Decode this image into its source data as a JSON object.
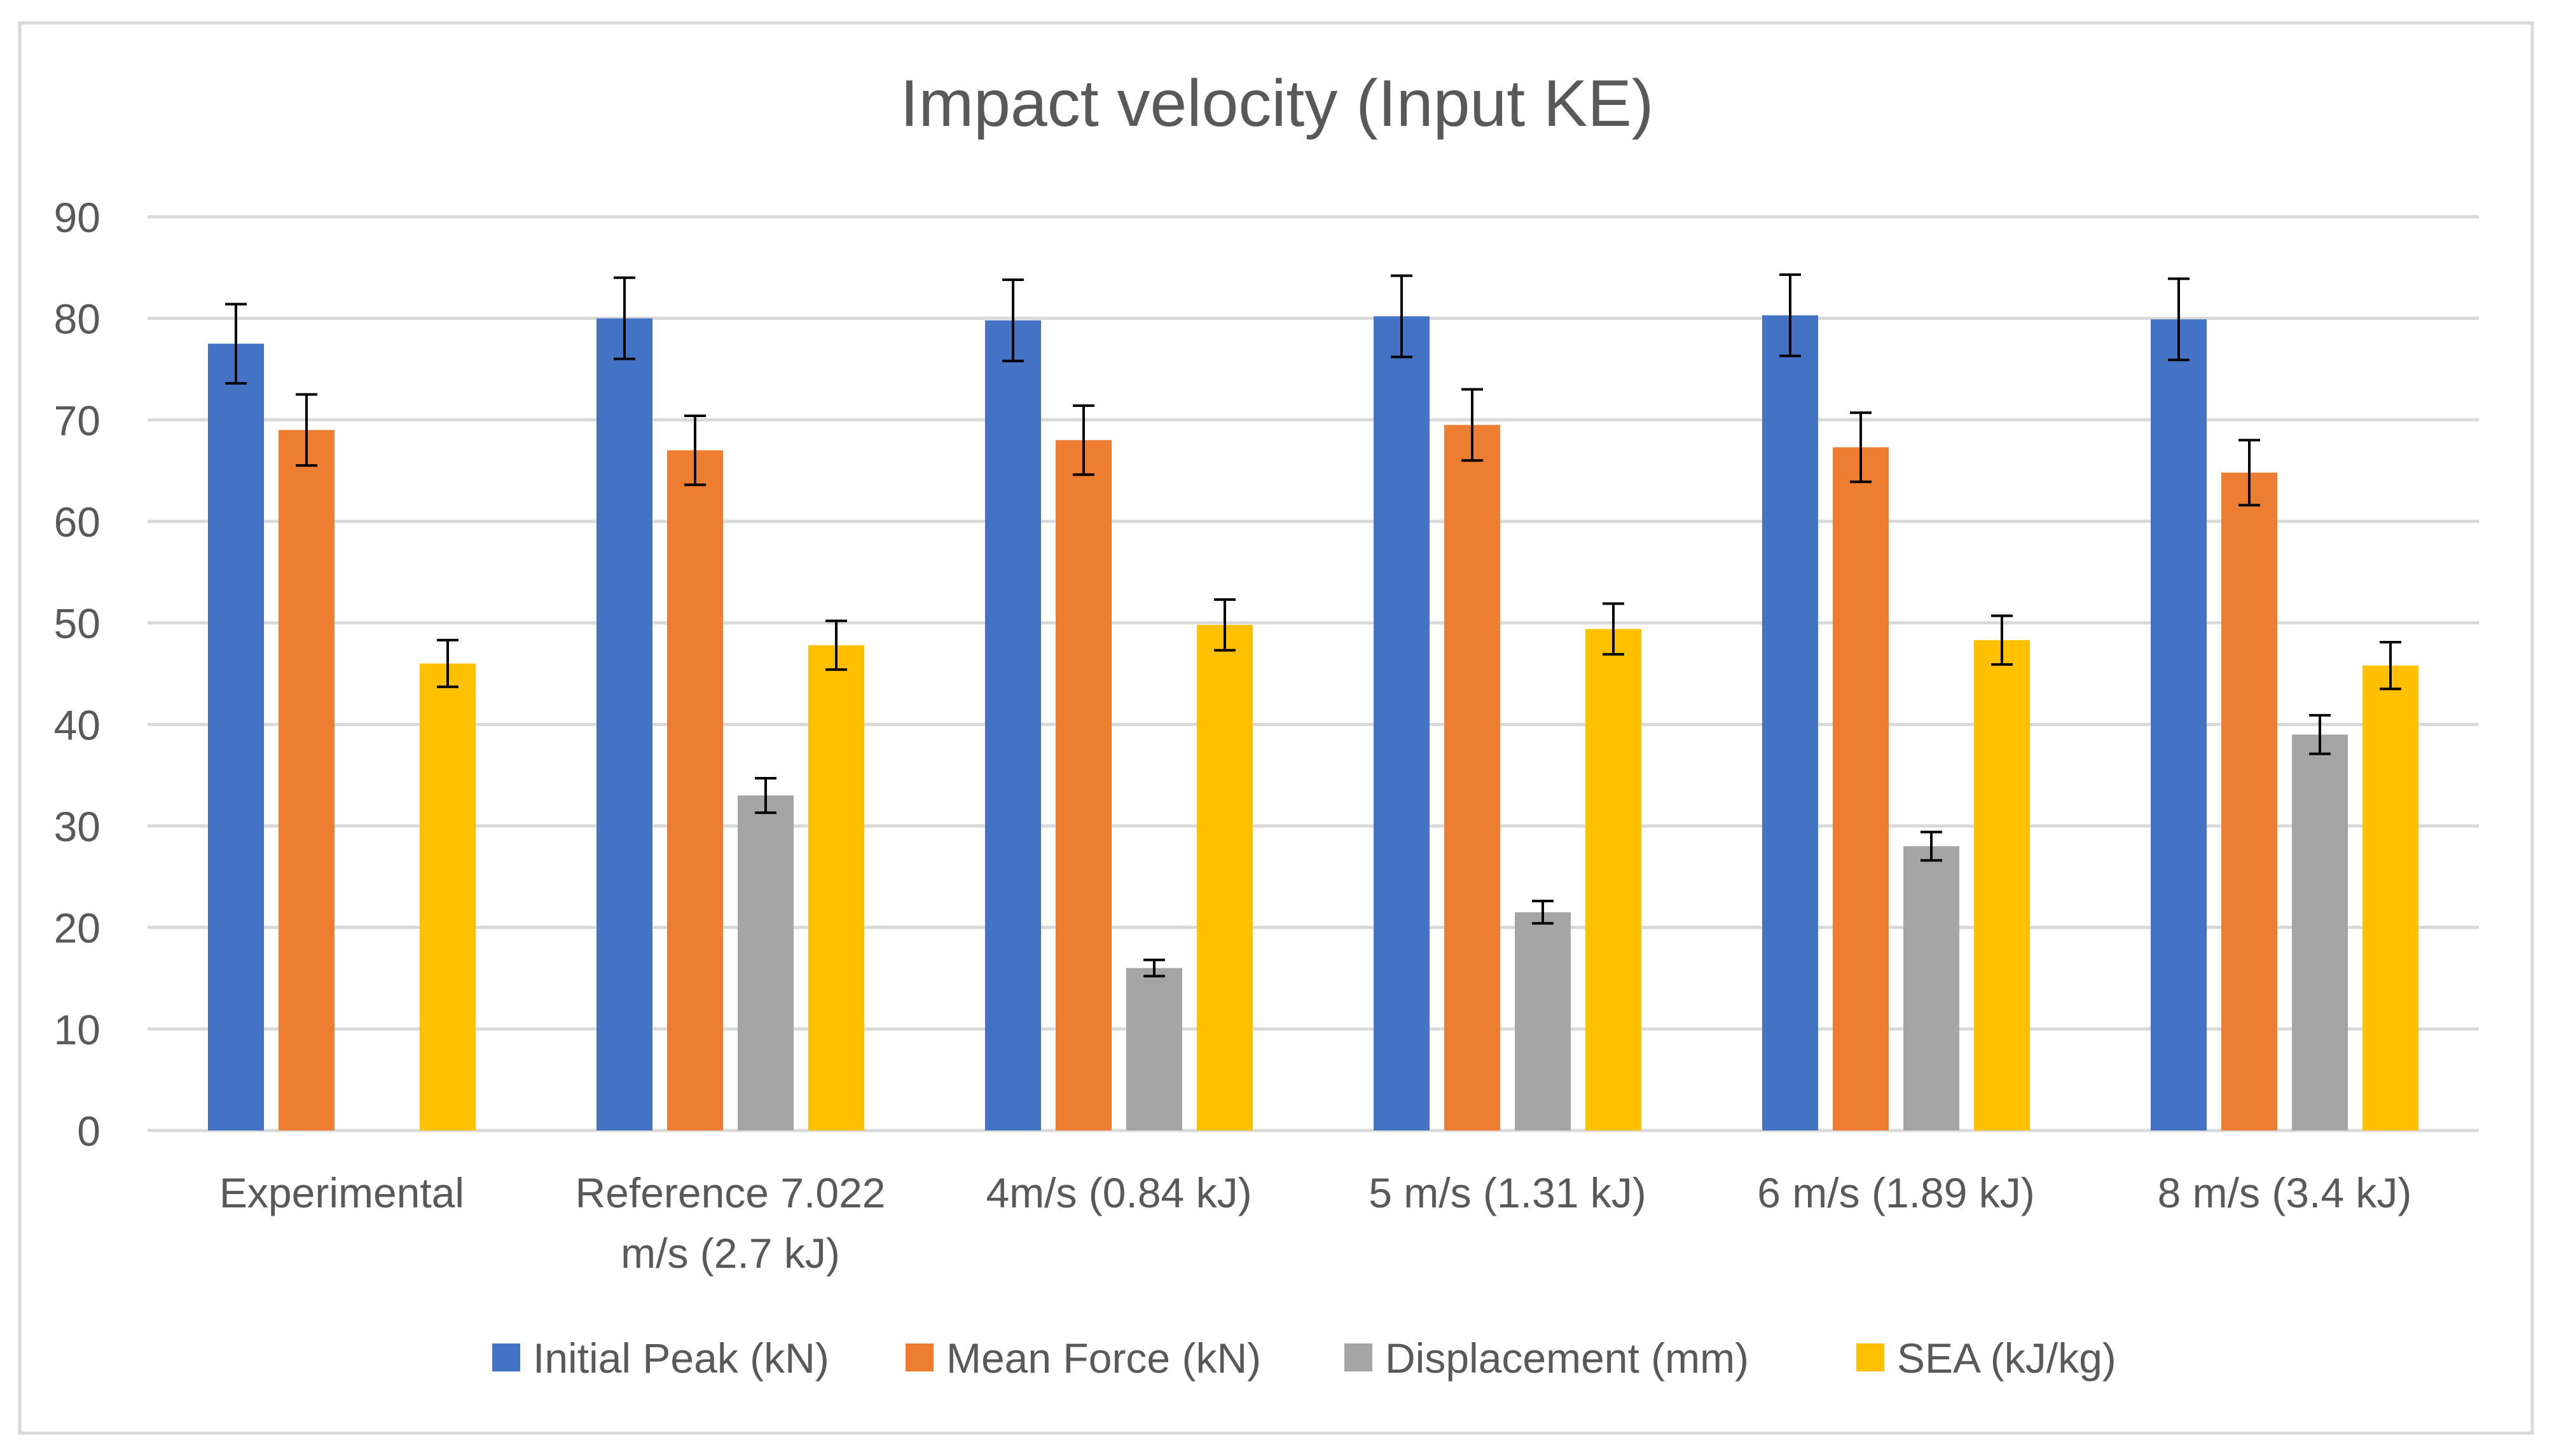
{
  "chart_data": {
    "type": "bar",
    "title": "Impact velocity (Input KE)",
    "xlabel": "",
    "ylabel": "",
    "ylim": [
      0,
      90
    ],
    "yticks": [
      0,
      10,
      20,
      30,
      40,
      50,
      60,
      70,
      80,
      90
    ],
    "grid": true,
    "legend_position": "bottom",
    "categories": [
      [
        "Experimental"
      ],
      [
        "Reference 7.022",
        "m/s (2.7 kJ)"
      ],
      [
        "4m/s (0.84 kJ)"
      ],
      [
        "5 m/s (1.31 kJ)"
      ],
      [
        "6 m/s (1.89 kJ)"
      ],
      [
        "8 m/s (3.4 kJ)"
      ]
    ],
    "series": [
      {
        "name": "Initial Peak (kN)",
        "color": "#4472C4",
        "values": [
          77.5,
          80.0,
          79.8,
          80.2,
          80.3,
          79.9
        ],
        "errors": [
          3.9,
          4.0,
          4.0,
          4.0,
          4.0,
          4.0
        ]
      },
      {
        "name": "Mean Force (kN)",
        "color": "#ED7D31",
        "values": [
          69.0,
          67.0,
          68.0,
          69.5,
          67.3,
          64.8
        ],
        "errors": [
          3.5,
          3.4,
          3.4,
          3.5,
          3.4,
          3.2
        ]
      },
      {
        "name": "Displacement (mm)",
        "color": "#A5A5A5",
        "values": [
          null,
          33.0,
          16.0,
          21.5,
          28.0,
          39.0
        ],
        "errors": [
          null,
          1.7,
          0.8,
          1.1,
          1.4,
          1.9
        ]
      },
      {
        "name": "SEA (kJ/kg)",
        "color": "#FFC000",
        "values": [
          46.0,
          47.8,
          49.8,
          49.4,
          48.3,
          45.8
        ],
        "errors": [
          2.3,
          2.4,
          2.5,
          2.5,
          2.4,
          2.3
        ]
      }
    ]
  }
}
